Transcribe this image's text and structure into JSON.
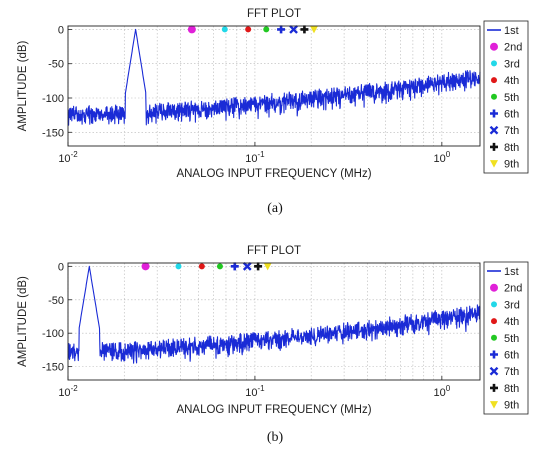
{
  "panels": [
    {
      "title": "FFT PLOT",
      "caption": "(a)",
      "xlabel": "ANALOG INPUT FREQUENCY (MHz)",
      "ylabel": "AMPLITUDE (dB)",
      "xscale": "log",
      "xlim": [
        0.01,
        1.6
      ],
      "ylim": [
        -170,
        5
      ],
      "y_ticks": [
        {
          "value": 0,
          "label": "0"
        },
        {
          "value": -50,
          "label": "-50"
        },
        {
          "value": -100,
          "label": "-100"
        },
        {
          "value": -150,
          "label": "-150"
        }
      ],
      "x_ticks": [
        {
          "value": 0.01,
          "base": "10",
          "exp": "-2"
        },
        {
          "value": 0.1,
          "base": "10",
          "exp": "-1"
        },
        {
          "value": 1,
          "base": "10",
          "exp": "0"
        }
      ],
      "grid": true,
      "legend_position": "right",
      "fundamental_mhz": 0.023,
      "harmonics_mhz": [
        0.046,
        0.069,
        0.092,
        0.115,
        0.138,
        0.161,
        0.184,
        0.207
      ],
      "noise_floor": {
        "start_db": -120,
        "end_db": -65
      }
    },
    {
      "title": "FFT PLOT",
      "caption": "(b)",
      "xlabel": "ANALOG INPUT FREQUENCY (MHz)",
      "ylabel": "AMPLITUDE (dB)",
      "xscale": "log",
      "xlim": [
        0.01,
        1.6
      ],
      "ylim": [
        -170,
        5
      ],
      "y_ticks": [
        {
          "value": 0,
          "label": "0"
        },
        {
          "value": -50,
          "label": "-50"
        },
        {
          "value": -100,
          "label": "-100"
        },
        {
          "value": -150,
          "label": "-150"
        }
      ],
      "x_ticks": [
        {
          "value": 0.01,
          "base": "10",
          "exp": "-2"
        },
        {
          "value": 0.1,
          "base": "10",
          "exp": "-1"
        },
        {
          "value": 1,
          "base": "10",
          "exp": "0"
        }
      ],
      "grid": true,
      "legend_position": "right",
      "fundamental_mhz": 0.013,
      "harmonics_mhz": [
        0.026,
        0.039,
        0.052,
        0.065,
        0.078,
        0.091,
        0.104,
        0.117
      ],
      "noise_floor": {
        "start_db": -123,
        "end_db": -65
      }
    }
  ],
  "legend": [
    {
      "label": "1st",
      "color": "#1a2bd6",
      "marker": "line"
    },
    {
      "label": "2nd",
      "color": "#e020d8",
      "marker": "circle"
    },
    {
      "label": "3rd",
      "color": "#22d8e8",
      "marker": "dot"
    },
    {
      "label": "4th",
      "color": "#e01818",
      "marker": "dot"
    },
    {
      "label": "5th",
      "color": "#22c822",
      "marker": "dot"
    },
    {
      "label": "6th",
      "color": "#1a2bd6",
      "marker": "plus"
    },
    {
      "label": "7th",
      "color": "#1a2bd6",
      "marker": "x"
    },
    {
      "label": "8th",
      "color": "#111111",
      "marker": "plus"
    },
    {
      "label": "9th",
      "color": "#f0e020",
      "marker": "triangle"
    }
  ],
  "chart_data": [
    {
      "type": "line",
      "title": "FFT PLOT",
      "xlabel": "ANALOG INPUT FREQUENCY (MHz)",
      "ylabel": "AMPLITUDE (dB)",
      "xscale": "log",
      "xlim": [
        0.01,
        1.6
      ],
      "ylim": [
        -170,
        5
      ],
      "series": [
        {
          "name": "1st",
          "x": [
            0.01,
            0.023,
            0.1,
            1.0,
            1.6
          ],
          "y": [
            -120,
            0,
            -110,
            -75,
            -65
          ]
        },
        {
          "name": "2nd",
          "x": [
            0.046
          ],
          "y": [
            0
          ]
        },
        {
          "name": "3rd",
          "x": [
            0.069
          ],
          "y": [
            0
          ]
        },
        {
          "name": "4th",
          "x": [
            0.092
          ],
          "y": [
            0
          ]
        },
        {
          "name": "5th",
          "x": [
            0.115
          ],
          "y": [
            0
          ]
        },
        {
          "name": "6th",
          "x": [
            0.138
          ],
          "y": [
            0
          ]
        },
        {
          "name": "7th",
          "x": [
            0.161
          ],
          "y": [
            0
          ]
        },
        {
          "name": "8th",
          "x": [
            0.184
          ],
          "y": [
            0
          ]
        },
        {
          "name": "9th",
          "x": [
            0.207
          ],
          "y": [
            0
          ]
        }
      ]
    },
    {
      "type": "line",
      "title": "FFT PLOT",
      "xlabel": "ANALOG INPUT FREQUENCY (MHz)",
      "ylabel": "AMPLITUDE (dB)",
      "xscale": "log",
      "xlim": [
        0.01,
        1.6
      ],
      "ylim": [
        -170,
        5
      ],
      "series": [
        {
          "name": "1st",
          "x": [
            0.01,
            0.013,
            0.1,
            1.0,
            1.6
          ],
          "y": [
            -123,
            0,
            -112,
            -75,
            -65
          ]
        },
        {
          "name": "2nd",
          "x": [
            0.026
          ],
          "y": [
            0
          ]
        },
        {
          "name": "3rd",
          "x": [
            0.039
          ],
          "y": [
            0
          ]
        },
        {
          "name": "4th",
          "x": [
            0.052
          ],
          "y": [
            0
          ]
        },
        {
          "name": "5th",
          "x": [
            0.065
          ],
          "y": [
            0
          ]
        },
        {
          "name": "6th",
          "x": [
            0.078
          ],
          "y": [
            0
          ]
        },
        {
          "name": "7th",
          "x": [
            0.091
          ],
          "y": [
            0
          ]
        },
        {
          "name": "8th",
          "x": [
            0.104
          ],
          "y": [
            0
          ]
        },
        {
          "name": "9th",
          "x": [
            0.117
          ],
          "y": [
            0
          ]
        }
      ]
    }
  ]
}
